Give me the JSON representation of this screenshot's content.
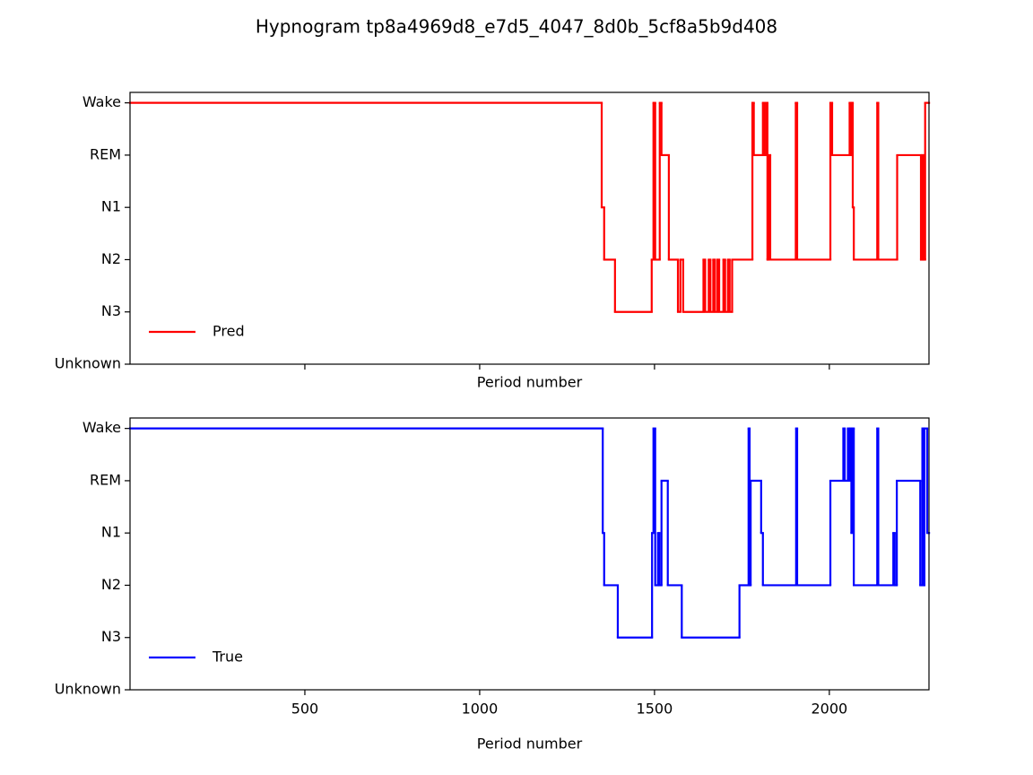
{
  "title": "Hypnogram tp8a4969d8_e7d5_4047_8d0b_5cf8a5b9d408",
  "chart_data": [
    {
      "type": "line",
      "xlabel": "Period number",
      "xlim": [
        0,
        2285
      ],
      "ylim": [
        0,
        5.2
      ],
      "xticks": [
        500,
        1000,
        1500,
        2000
      ],
      "show_xtick_labels": false,
      "yticks": [
        {
          "value": 0,
          "label": "Unknown"
        },
        {
          "value": 1,
          "label": "N3"
        },
        {
          "value": 2,
          "label": "N2"
        },
        {
          "value": 3,
          "label": "N1"
        },
        {
          "value": 4,
          "label": "REM"
        },
        {
          "value": 5,
          "label": "Wake"
        }
      ],
      "legend": "lower left",
      "x": [
        0,
        1349,
        1356,
        1387,
        1492,
        1497,
        1502,
        1515,
        1520,
        1541,
        1567,
        1574,
        1582,
        1640,
        1645,
        1655,
        1660,
        1668,
        1673,
        1680,
        1685,
        1697,
        1702,
        1710,
        1715,
        1722,
        1780,
        1784,
        1810,
        1815,
        1820,
        1823,
        1826,
        1831,
        1904,
        1908,
        2003,
        2008,
        2058,
        2061,
        2064,
        2067,
        2070,
        2137,
        2140,
        2194,
        2262,
        2266,
        2270,
        2274,
        2285
      ],
      "series": [
        {
          "name": "Pred",
          "color": "#ff0000",
          "values": [
            5,
            3,
            2,
            1,
            2,
            5,
            2,
            5,
            4,
            2,
            1,
            2,
            1,
            2,
            1,
            2,
            1,
            2,
            1,
            2,
            1,
            2,
            1,
            2,
            1,
            2,
            5,
            4,
            5,
            4,
            5,
            2,
            4,
            2,
            5,
            2,
            5,
            4,
            5,
            4,
            5,
            3,
            2,
            5,
            2,
            4,
            2,
            4,
            2,
            5,
            5
          ]
        }
      ]
    },
    {
      "type": "line",
      "xlabel": "Period number",
      "xlim": [
        0,
        2285
      ],
      "ylim": [
        0,
        5.2
      ],
      "xticks": [
        500,
        1000,
        1500,
        2000
      ],
      "show_xtick_labels": true,
      "yticks": [
        {
          "value": 0,
          "label": "Unknown"
        },
        {
          "value": 1,
          "label": "N3"
        },
        {
          "value": 2,
          "label": "N2"
        },
        {
          "value": 3,
          "label": "N1"
        },
        {
          "value": 4,
          "label": "REM"
        },
        {
          "value": 5,
          "label": "Wake"
        }
      ],
      "legend": "lower left",
      "x": [
        0,
        1352,
        1356,
        1395,
        1493,
        1497,
        1502,
        1510,
        1514,
        1520,
        1538,
        1578,
        1743,
        1769,
        1772,
        1775,
        1805,
        1810,
        1905,
        1908,
        2003,
        2040,
        2044,
        2053,
        2057,
        2060,
        2063,
        2066,
        2070,
        2137,
        2140,
        2183,
        2187,
        2193,
        2260,
        2266,
        2270,
        2272,
        2280,
        2285
      ],
      "series": [
        {
          "name": "True",
          "color": "#0000ff",
          "values": [
            5,
            3,
            2,
            1,
            3,
            5,
            2,
            3,
            2,
            4,
            2,
            1,
            2,
            5,
            2,
            4,
            3,
            2,
            5,
            2,
            4,
            5,
            4,
            5,
            4,
            5,
            3,
            5,
            2,
            5,
            2,
            3,
            2,
            4,
            2,
            5,
            2,
            5,
            3,
            3
          ]
        }
      ]
    }
  ]
}
